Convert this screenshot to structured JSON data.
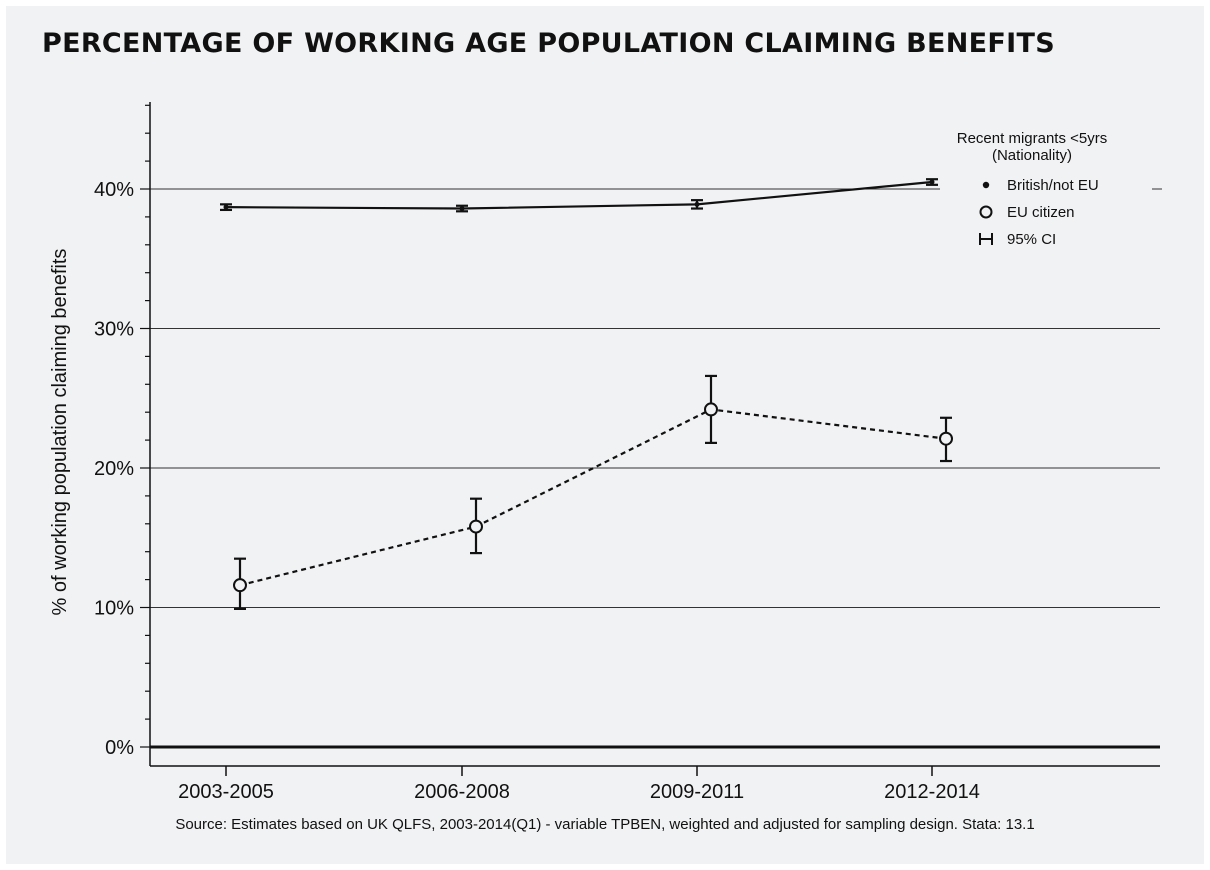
{
  "title": "PERCENTAGE OF WORKING AGE POPULATION CLAIMING BENEFITS",
  "source": "Source: Estimates based on UK QLFS, 2003-2014(Q1) - variable TPBEN, weighted and adjusted for sampling design. Stata: 13.1",
  "chart_data": {
    "type": "line",
    "title": "PERCENTAGE OF WORKING AGE POPULATION CLAIMING BENEFITS",
    "xlabel": "",
    "ylabel": "% of working population claiming benefits",
    "ylim": [
      0,
      46
    ],
    "y_ticks": [
      0,
      10,
      20,
      30,
      40
    ],
    "y_tick_labels": [
      "0%",
      "10%",
      "20%",
      "30%",
      "40%"
    ],
    "categories": [
      "2003-2005",
      "2006-2008",
      "2009-2011",
      "2012-2014"
    ],
    "grid": true,
    "legend_title": [
      "Recent migrants <5yrs",
      "(Nationality)"
    ],
    "legend_position": "top-right",
    "legend_entries": [
      {
        "label": "British/not EU",
        "marker": "dot"
      },
      {
        "label": "EU citizen",
        "marker": "hollow-circle"
      },
      {
        "label": "95% CI",
        "marker": "ci-bar"
      }
    ],
    "series": [
      {
        "name": "British/not EU",
        "style": "solid",
        "marker": "dot",
        "values": [
          38.7,
          38.6,
          38.9,
          40.5
        ],
        "ci_low": [
          38.5,
          38.4,
          38.6,
          40.3
        ],
        "ci_high": [
          38.9,
          38.8,
          39.2,
          40.7
        ]
      },
      {
        "name": "EU citizen",
        "style": "dashed",
        "marker": "hollow-circle",
        "values": [
          11.6,
          15.8,
          24.2,
          22.1
        ],
        "ci_low": [
          9.9,
          13.9,
          21.8,
          20.5
        ],
        "ci_high": [
          13.5,
          17.8,
          26.6,
          23.6
        ]
      }
    ]
  }
}
